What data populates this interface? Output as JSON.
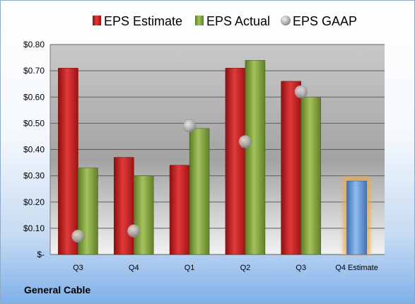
{
  "company_name": "General Cable",
  "chart_data": {
    "type": "bar",
    "categories": [
      "Q3",
      "Q4",
      "Q1",
      "Q2",
      "Q3",
      "Q4 Estimate"
    ],
    "series": [
      {
        "name": "EPS Estimate",
        "values": [
          0.71,
          0.37,
          0.34,
          0.71,
          0.66,
          null
        ],
        "color": "#d42a2a"
      },
      {
        "name": "EPS Actual",
        "values": [
          0.33,
          0.3,
          0.48,
          0.74,
          0.6,
          0.28
        ],
        "color": "#8fb24a",
        "last_point_color": "#74a5e0",
        "last_point_highlight": "#f2a84a"
      },
      {
        "name": "EPS GAAP",
        "values": [
          0.07,
          0.09,
          0.49,
          0.43,
          0.62,
          null
        ],
        "color": "#b9b9b9",
        "marker": "circle"
      }
    ],
    "y_tick_labels": [
      "$-",
      "$0.10",
      "$0.20",
      "$0.30",
      "$0.40",
      "$0.50",
      "$0.60",
      "$0.70",
      "$0.80"
    ],
    "ylim": [
      0,
      0.8
    ],
    "y_tick_step": 0.1,
    "grid": true,
    "legend_position": "top"
  }
}
